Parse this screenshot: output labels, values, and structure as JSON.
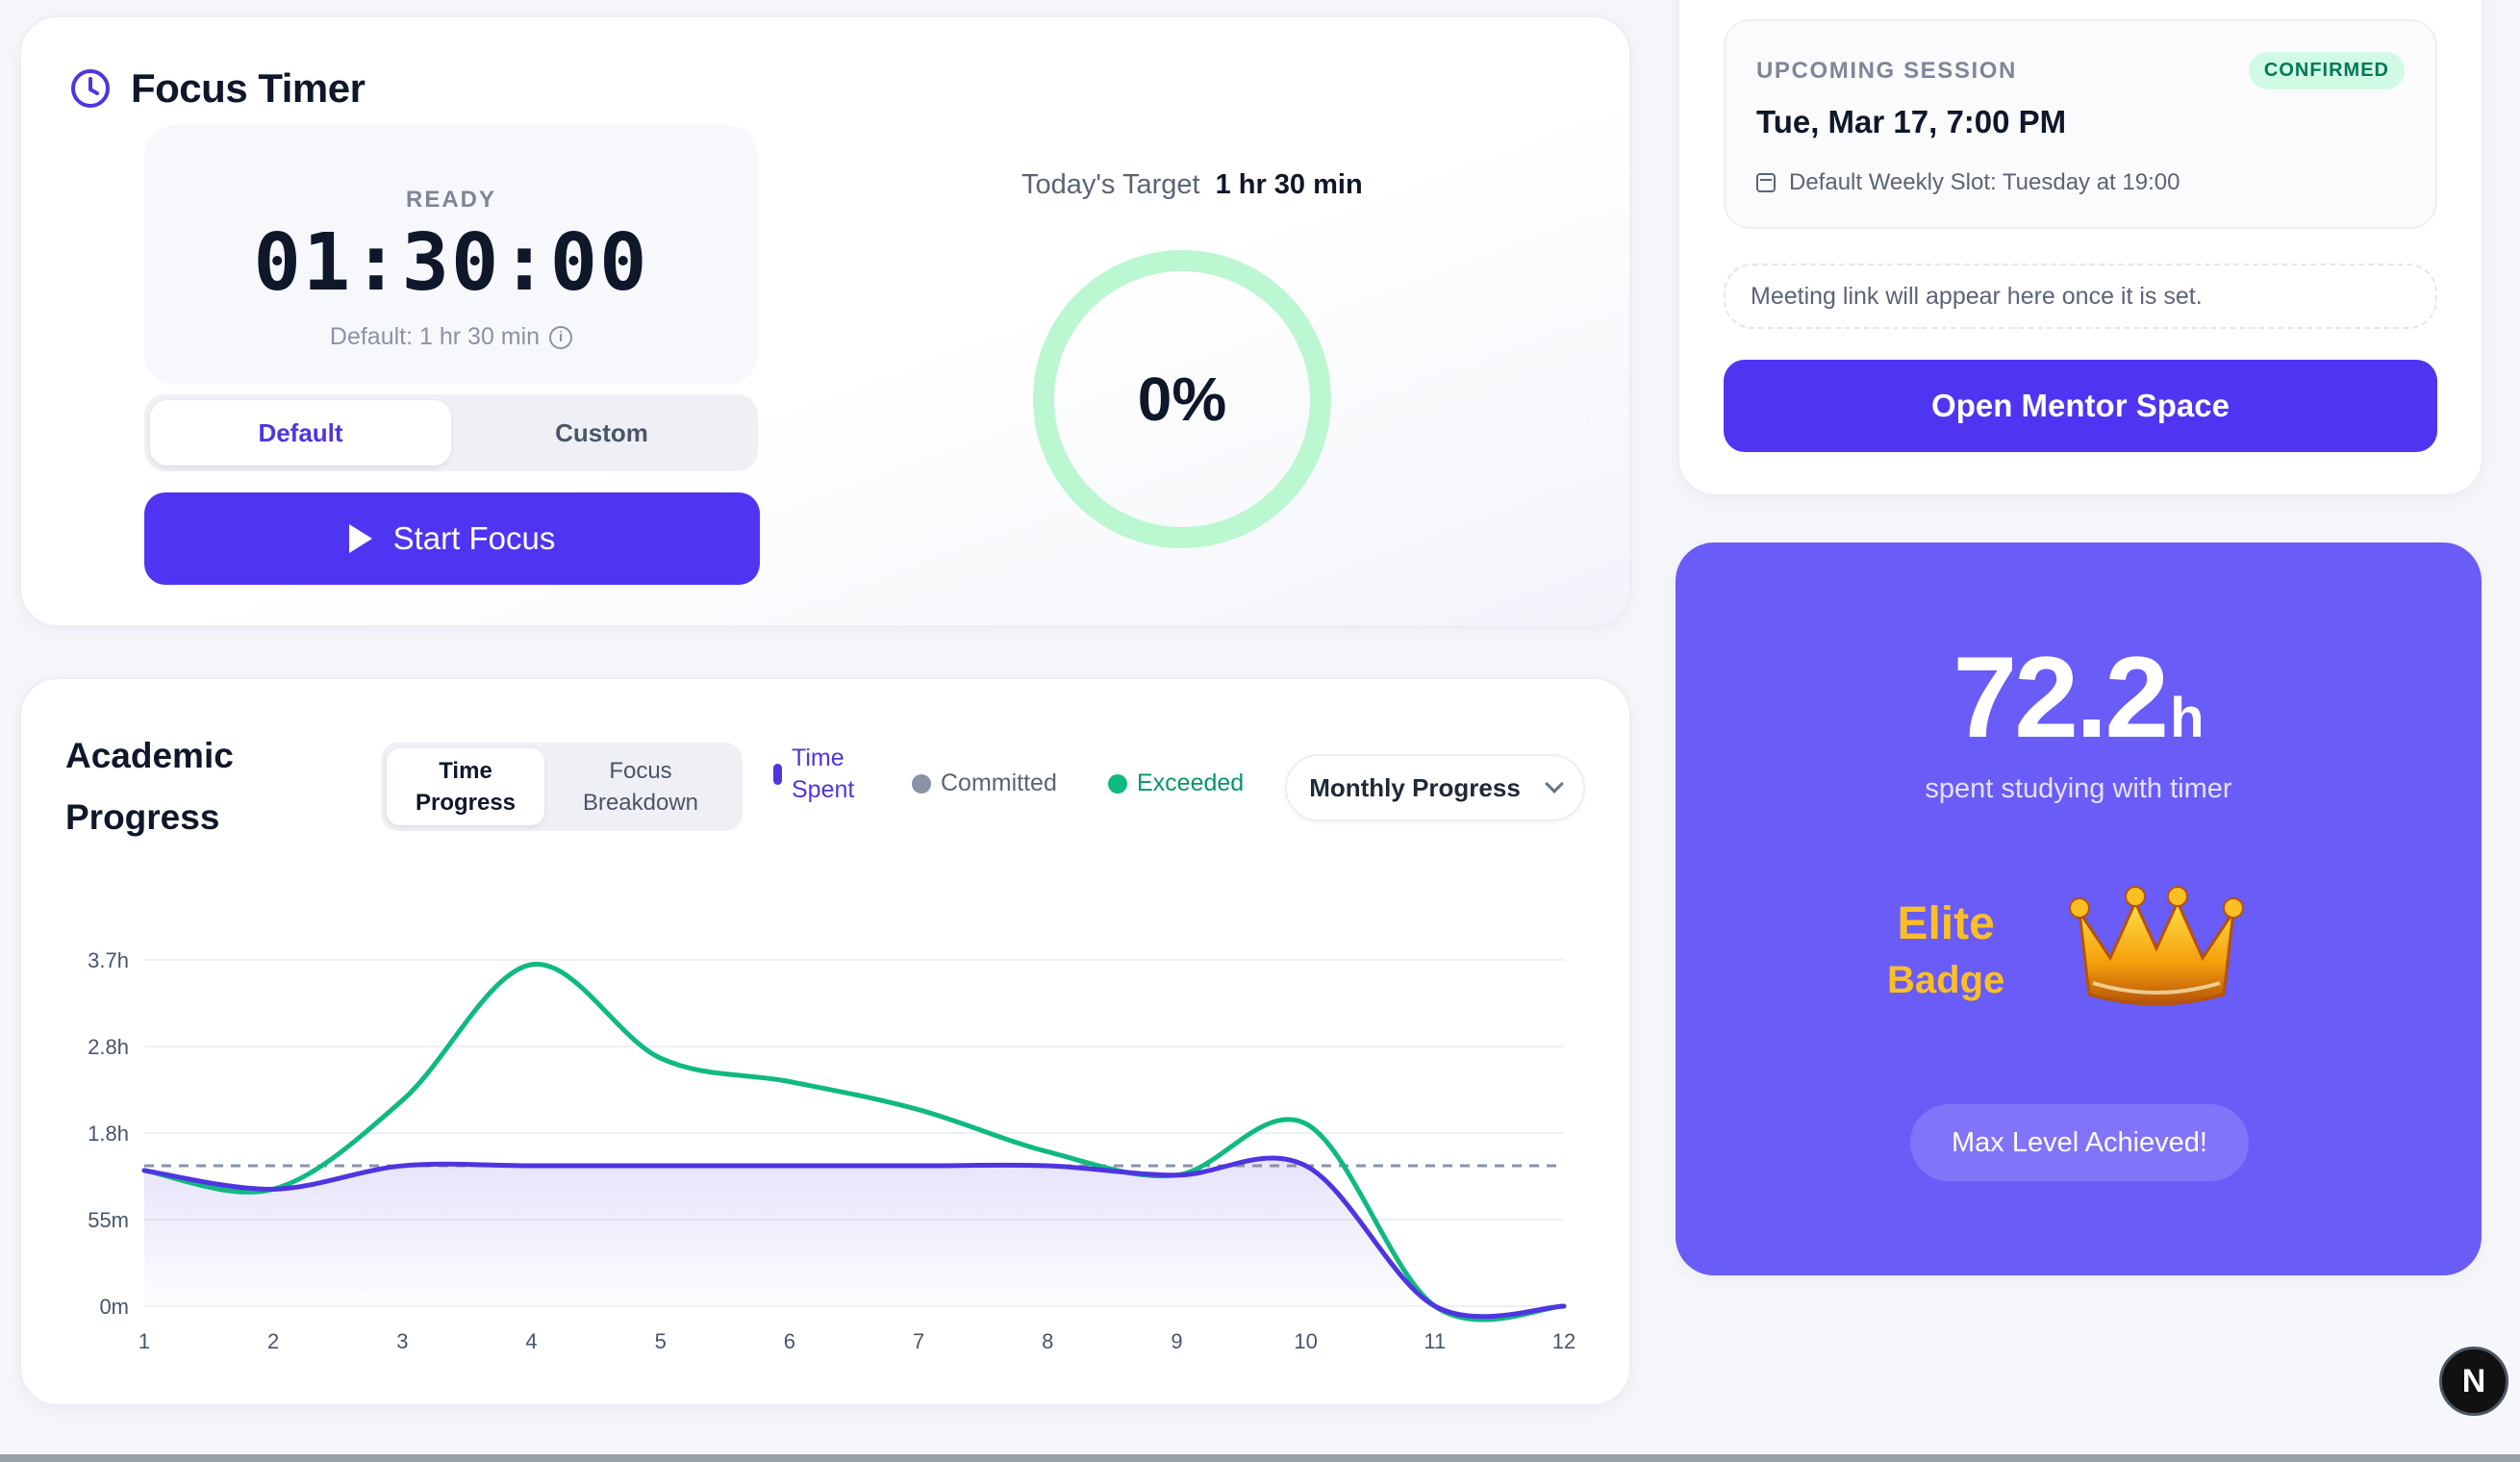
{
  "focus_timer": {
    "title": "Focus Timer",
    "state": "READY",
    "time": "01:30:00",
    "default_label": "Default: 1 hr 30 min",
    "modes": [
      "Default",
      "Custom"
    ],
    "active_mode": "Default",
    "start_label": "Start Focus",
    "target_label": "Today's Target",
    "target_value": "1 hr 30 min",
    "progress_text": "0%",
    "progress_fraction": 0
  },
  "academic_progress": {
    "title_line1": "Academic",
    "title_line2": "Progress",
    "tab1_line1": "Time",
    "tab1_line2": "Progress",
    "tab2_line1": "Focus",
    "tab2_line2": "Breakdown",
    "legend_time_line1": "Time",
    "legend_time_line2": "Spent",
    "legend_committed": "Committed",
    "legend_exceeded": "Exceeded",
    "period": "Monthly Progress"
  },
  "chart_data": {
    "type": "line",
    "x": [
      1,
      2,
      3,
      4,
      5,
      6,
      7,
      8,
      9,
      10,
      11,
      12
    ],
    "y_ticks": [
      "0m",
      "55m",
      "1.8h",
      "2.8h",
      "3.7h"
    ],
    "ylim_hours": [
      0,
      3.7
    ],
    "committed_hours": 1.5,
    "series": [
      {
        "name": "Exceeded",
        "values": [
          1.45,
          1.25,
          2.2,
          3.65,
          2.65,
          2.4,
          2.1,
          1.65,
          1.4,
          1.95,
          0,
          0
        ]
      },
      {
        "name": "Time Spent",
        "values": [
          1.45,
          1.25,
          1.5,
          1.5,
          1.5,
          1.5,
          1.5,
          1.5,
          1.4,
          1.5,
          0,
          0
        ]
      }
    ],
    "legend": "top",
    "grid": true
  },
  "session": {
    "label": "UPCOMING SESSION",
    "status": "CONFIRMED",
    "date": "Tue, Mar 17, 7:00 PM",
    "slot": "Default Weekly Slot: Tuesday at 19:00",
    "meeting_note": "Meeting link will appear here once it is set.",
    "mentor_button": "Open Mentor Space"
  },
  "stats": {
    "hours_value": "72.2",
    "hours_unit": "h",
    "hours_caption": "spent studying with timer",
    "badge_line1": "Elite",
    "badge_line2": "Badge",
    "level_text": "Max Level Achieved!"
  },
  "floating_button": "N",
  "colors": {
    "primary": "#4f35f2",
    "exceeded": "#10b981",
    "committed": "#8a93a6",
    "stats_bg": "#6a5cf7",
    "ring": "#bbf7d0"
  }
}
